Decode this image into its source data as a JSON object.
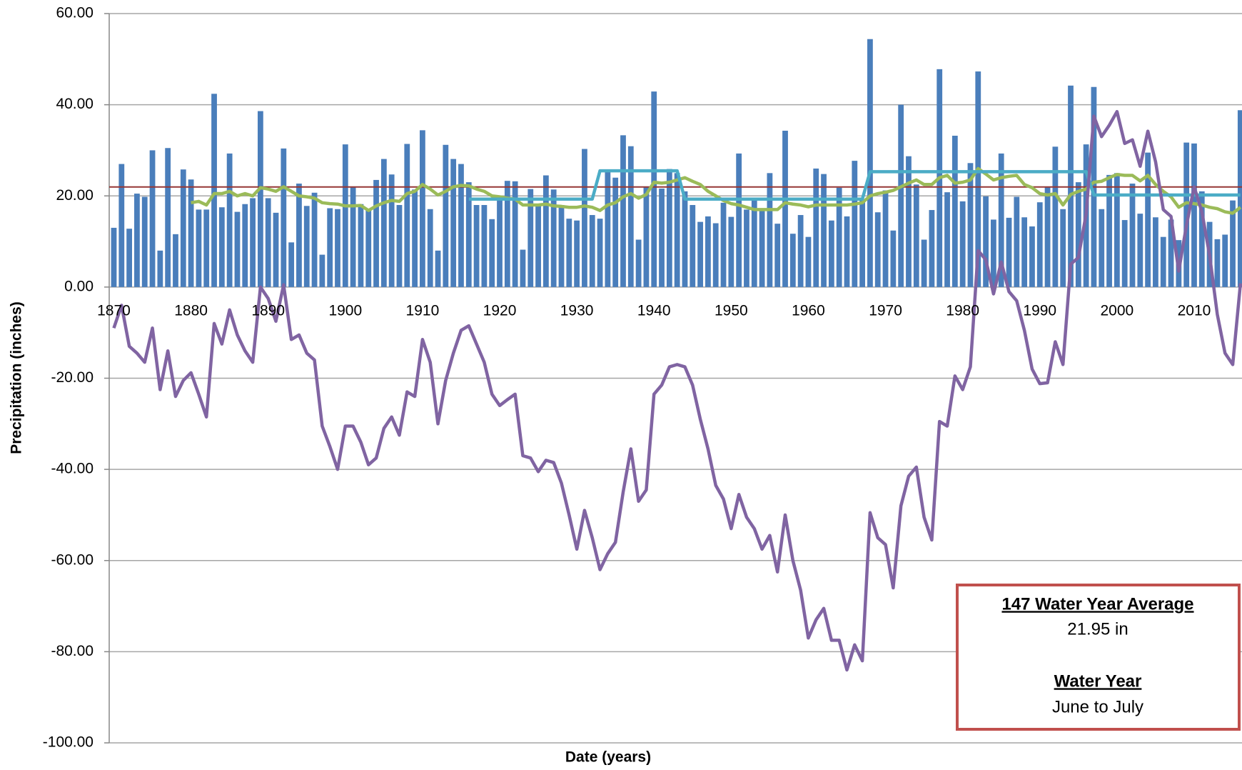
{
  "chart_data": {
    "type": "combo",
    "y_label": "Precipitation (inches)",
    "x_label": "Date (years)",
    "xlim": [
      1869.4,
      2016.2
    ],
    "xticks": [
      1870,
      1880,
      1890,
      1900,
      1910,
      1920,
      1930,
      1940,
      1950,
      1960,
      1970,
      1980,
      1990,
      2000,
      2010
    ],
    "ylim": [
      -100,
      60
    ],
    "yticks": [
      {
        "value": -100,
        "label": "-100.00"
      },
      {
        "value": -80,
        "label": "-80.00"
      },
      {
        "value": -60,
        "label": "-60.00"
      },
      {
        "value": -40,
        "label": "-40.00"
      },
      {
        "value": -20,
        "label": "-20.00"
      },
      {
        "value": 0,
        "label": "0.00"
      },
      {
        "value": 20,
        "label": "20.00"
      },
      {
        "value": 40,
        "label": "40.00"
      },
      {
        "value": 60,
        "label": "60.00"
      }
    ],
    "grid": true,
    "x": [
      1870,
      1871,
      1872,
      1873,
      1874,
      1875,
      1876,
      1877,
      1878,
      1879,
      1880,
      1881,
      1882,
      1883,
      1884,
      1885,
      1886,
      1887,
      1888,
      1889,
      1890,
      1891,
      1892,
      1893,
      1894,
      1895,
      1896,
      1897,
      1898,
      1899,
      1900,
      1901,
      1902,
      1903,
      1904,
      1905,
      1906,
      1907,
      1908,
      1909,
      1910,
      1911,
      1912,
      1913,
      1914,
      1915,
      1916,
      1917,
      1918,
      1919,
      1920,
      1921,
      1922,
      1923,
      1924,
      1925,
      1926,
      1927,
      1928,
      1929,
      1930,
      1931,
      1932,
      1933,
      1934,
      1935,
      1936,
      1937,
      1938,
      1939,
      1940,
      1941,
      1942,
      1943,
      1944,
      1945,
      1946,
      1947,
      1948,
      1949,
      1950,
      1951,
      1952,
      1953,
      1954,
      1955,
      1956,
      1957,
      1958,
      1959,
      1960,
      1961,
      1962,
      1963,
      1964,
      1965,
      1966,
      1967,
      1968,
      1969,
      1970,
      1971,
      1972,
      1973,
      1974,
      1975,
      1976,
      1977,
      1978,
      1979,
      1980,
      1981,
      1982,
      1983,
      1984,
      1985,
      1986,
      1987,
      1988,
      1989,
      1990,
      1991,
      1992,
      1993,
      1994,
      1995,
      1996,
      1997,
      1998,
      1999,
      2000,
      2001,
      2002,
      2003,
      2004,
      2005,
      2006,
      2007,
      2008,
      2009,
      2010,
      2011,
      2012,
      2013,
      2014,
      2015,
      2016
    ],
    "series": [
      {
        "type": "bar",
        "color": "#4a7ebb",
        "values": [
          13,
          27,
          12.8,
          20.5,
          19.8,
          30,
          8,
          30.5,
          11.6,
          25.8,
          23.6,
          17,
          17,
          42.4,
          17.5,
          29.3,
          16.5,
          18.2,
          19.5,
          38.6,
          19.5,
          16.3,
          30.4,
          9.8,
          22.7,
          17.8,
          20.7,
          7.1,
          17.3,
          17.1,
          31.3,
          21.9,
          18.2,
          16.8,
          23.5,
          28.1,
          24.7,
          18,
          31.4,
          21.4,
          34.4,
          17.1,
          8,
          31.2,
          28.1,
          27,
          23,
          18,
          18,
          14.9,
          19.6,
          23.3,
          23.2,
          8.2,
          21.5,
          18,
          24.5,
          21.4,
          18,
          15,
          14.6,
          30.3,
          15.8,
          15,
          25.6,
          24,
          33.3,
          30.9,
          10.4,
          22,
          42.9,
          21.6,
          25.9,
          25,
          21,
          18,
          14.3,
          15.5,
          14,
          18.5,
          15.4,
          29.3,
          17,
          19,
          17,
          25,
          13.9,
          34.3,
          11.7,
          15.8,
          11,
          26,
          24.8,
          14.6,
          21.8,
          15.5,
          27.7,
          19,
          54.4,
          16.4,
          21.2,
          12.4,
          40,
          28.7,
          22.5,
          10.4,
          16.9,
          47.8,
          20.8,
          33.2,
          18.8,
          27.2,
          47.3,
          19.9,
          14.8,
          29.3,
          15.2,
          19.8,
          15.3,
          13.3,
          18.6,
          22,
          30.8,
          17.1,
          44.2,
          23,
          31.3,
          43.9,
          17.1,
          24.6,
          25,
          14.7,
          22.7,
          16.1,
          29.5,
          15.3,
          11,
          14.8,
          10.3,
          31.7,
          31.5,
          21,
          14.3,
          10.5,
          11.5,
          19,
          38.8
        ]
      },
      {
        "type": "line",
        "color": "#9bbb59",
        "values": [
          null,
          null,
          null,
          null,
          null,
          null,
          null,
          null,
          null,
          null,
          18.5,
          18.8,
          18,
          20.5,
          20.5,
          21,
          20,
          20.5,
          20,
          21.8,
          21.5,
          21,
          22,
          21,
          20,
          19.8,
          19.5,
          18.5,
          18.3,
          18.2,
          17.8,
          17.8,
          17.9,
          16.8,
          17.8,
          18.5,
          19,
          18.8,
          20.5,
          21,
          22.5,
          21.5,
          20.2,
          21,
          22,
          22.3,
          22.2,
          21.5,
          21,
          20,
          19.8,
          19.5,
          19.3,
          18,
          18,
          18,
          18.2,
          17.8,
          17.7,
          17.5,
          17.5,
          17.8,
          17.5,
          16.8,
          18,
          18.5,
          19.8,
          20.5,
          19.5,
          20.3,
          23,
          22.8,
          23,
          23.5,
          24,
          23.2,
          22.5,
          21,
          20,
          19,
          18.3,
          18,
          17.5,
          17,
          17,
          17,
          17,
          18.5,
          18.2,
          18,
          17.6,
          18,
          18,
          18,
          18,
          18,
          18.2,
          18.5,
          20,
          20.5,
          20.8,
          21.2,
          22,
          22.8,
          23.5,
          22.5,
          22.5,
          24,
          24.5,
          22.8,
          23,
          23.5,
          26,
          24.8,
          23.5,
          24,
          24.3,
          24.5,
          22.5,
          21.8,
          20.5,
          20.2,
          20.5,
          18,
          20.3,
          21,
          21.5,
          23,
          23.2,
          24,
          24.7,
          24.5,
          24.5,
          23.3,
          24.5,
          22.5,
          21,
          19.8,
          17.5,
          18.5,
          18.3,
          18,
          17.5,
          17.2,
          16.5,
          16.2,
          17.5
        ]
      },
      {
        "type": "line",
        "color": "#4bacc6",
        "values": [
          null,
          null,
          null,
          null,
          null,
          null,
          null,
          null,
          null,
          null,
          null,
          null,
          null,
          null,
          null,
          null,
          null,
          null,
          null,
          null,
          null,
          null,
          null,
          null,
          null,
          null,
          null,
          null,
          null,
          null,
          null,
          null,
          null,
          null,
          null,
          null,
          null,
          null,
          null,
          null,
          null,
          null,
          null,
          null,
          null,
          null,
          19.3,
          19.3,
          19.3,
          19.3,
          19.3,
          19.3,
          19.3,
          19.3,
          19.3,
          19.3,
          19.3,
          19.3,
          19.3,
          19.3,
          19.3,
          19.3,
          19.3,
          25.5,
          25.5,
          25.5,
          25.5,
          25.5,
          25.5,
          25.5,
          25.5,
          25.5,
          25.5,
          25.5,
          19.3,
          19.3,
          19.3,
          19.3,
          19.3,
          19.3,
          19.3,
          19.3,
          19.3,
          19.3,
          19.3,
          19.3,
          19.3,
          19.3,
          19.3,
          19.3,
          19.3,
          19.3,
          19.3,
          19.3,
          19.3,
          19.3,
          19.3,
          19.3,
          25.3,
          25.3,
          25.3,
          25.3,
          25.3,
          25.3,
          25.3,
          25.3,
          25.3,
          25.3,
          25.3,
          25.3,
          25.3,
          25.3,
          25.3,
          25.3,
          25.3,
          25.3,
          25.3,
          25.3,
          25.3,
          25.3,
          25.3,
          25.3,
          25.3,
          25.3,
          25.3,
          25.3,
          25.3,
          20.2,
          20.2,
          20.2,
          20.2,
          20.2,
          20.2,
          20.2,
          20.2,
          20.2,
          20.2,
          20.2,
          20.2,
          20.2,
          20.2,
          20.2,
          20.2,
          20.2,
          20.2,
          20.2,
          20.2
        ]
      },
      {
        "type": "line",
        "color": "#8064a2",
        "values": [
          -9,
          -4,
          -13,
          -14.5,
          -16.5,
          -9,
          -22.5,
          -14,
          -24,
          -20.5,
          -18.8,
          -23.5,
          -28.5,
          -8,
          -12.5,
          -5,
          -10.5,
          -14,
          -16.5,
          0,
          -2.5,
          -7.5,
          0.5,
          -11.5,
          -10.5,
          -14.5,
          -16,
          -30.5,
          -35,
          -40,
          -30.5,
          -30.5,
          -34,
          -39,
          -37.5,
          -31,
          -28.5,
          -32.5,
          -23,
          -24,
          -11.5,
          -16.5,
          -30,
          -20.5,
          -14.5,
          -9.5,
          -8.5,
          -12.5,
          -16.5,
          -23.5,
          -26,
          -24.7,
          -23.5,
          -37,
          -37.5,
          -40.5,
          -38,
          -38.5,
          -43,
          -50,
          -57.5,
          -49,
          -55,
          -62,
          -58.5,
          -56,
          -45,
          -35.5,
          -47,
          -44.5,
          -23.5,
          -21.5,
          -17.5,
          -17,
          -17.5,
          -21.5,
          -29,
          -35.5,
          -43.5,
          -46.5,
          -53,
          -45.5,
          -50.5,
          -53,
          -57.5,
          -54.5,
          -62.5,
          -50,
          -60,
          -66.5,
          -77,
          -73,
          -70.5,
          -77.5,
          -77.5,
          -84,
          -78.5,
          -82,
          -49.5,
          -55,
          -56.5,
          -66,
          -48,
          -41.5,
          -39.5,
          -50.5,
          -55.5,
          -29.5,
          -30.5,
          -19.5,
          -22.5,
          -17.5,
          8,
          6,
          -1.5,
          5.5,
          -1,
          -3,
          -9.5,
          -18,
          -21.2,
          -21,
          -12,
          -17,
          5,
          6.5,
          16,
          37.5,
          33,
          35.5,
          38.5,
          31.5,
          32.3,
          26.5,
          34.2,
          27.5,
          17,
          15.5,
          3.5,
          13.5,
          22,
          16.5,
          7,
          -6,
          -14.5,
          -17,
          0.8
        ]
      }
    ],
    "average_line": {
      "value": 21.95,
      "color": "#953735"
    },
    "annotations": [
      "147 Water Year Average",
      "21.95 in",
      "Water Year",
      "June to July"
    ]
  }
}
